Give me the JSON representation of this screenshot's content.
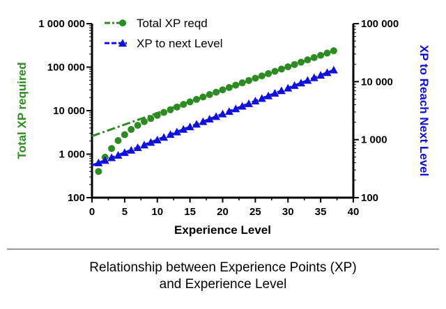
{
  "colors": {
    "total": "#2e8b22",
    "next": "#1010d8",
    "axis": "#000000",
    "divider": "#999999"
  },
  "caption": {
    "line1": "Relationship between Experience Points (XP)",
    "line2": "and Experience Level"
  },
  "chart_data": {
    "type": "scatter",
    "xlabel": "Experience Level",
    "ylabel_left": "Total XP required",
    "ylabel_right": "XP to Reach  Next Level",
    "xlim": [
      0,
      40
    ],
    "ylim_left": [
      100,
      1000000
    ],
    "ylim_right": [
      100,
      100000
    ],
    "log_scale_y": true,
    "grid": false,
    "legend_position": "top-left",
    "x_ticks": [
      "0",
      "5",
      "10",
      "15",
      "20",
      "25",
      "30",
      "35",
      "40"
    ],
    "y_left_ticks": [
      "100",
      "1 000",
      "10 000",
      "100 000",
      "1 000 000"
    ],
    "y_right_ticks": [
      "100",
      "1 000",
      "10 000",
      "100 000"
    ],
    "series": [
      {
        "name": "Total XP reqd",
        "axis": "left",
        "marker": "circle",
        "fit": "dash-dot",
        "x": [
          1,
          2,
          3,
          4,
          5,
          6,
          7,
          8,
          9,
          10,
          11,
          12,
          13,
          14,
          15,
          16,
          17,
          18,
          19,
          20,
          21,
          22,
          23,
          24,
          25,
          26,
          27,
          28,
          29,
          30,
          31,
          32,
          33,
          34,
          35,
          36,
          37
        ],
        "values": [
          400,
          850,
          1350,
          2050,
          2800,
          3700,
          4600,
          5600,
          6600,
          7800,
          9100,
          10500,
          12100,
          13900,
          15900,
          18100,
          20600,
          23400,
          26600,
          30100,
          34100,
          38600,
          43600,
          49300,
          55700,
          62900,
          71000,
          80200,
          90500,
          102000,
          115000,
          130000,
          147000,
          166000,
          187000,
          211000,
          238000
        ]
      },
      {
        "name": "XP to next Level",
        "axis": "right",
        "marker": "triangle",
        "fit": "dash",
        "x": [
          1,
          2,
          3,
          4,
          5,
          6,
          7,
          8,
          9,
          10,
          11,
          12,
          13,
          14,
          15,
          16,
          17,
          18,
          19,
          20,
          21,
          22,
          23,
          24,
          25,
          26,
          27,
          28,
          29,
          30,
          31,
          32,
          33,
          34,
          35,
          36,
          37
        ],
        "values": [
          400,
          440,
          490,
          540,
          600,
          660,
          730,
          810,
          900,
          990,
          1100,
          1230,
          1360,
          1510,
          1670,
          1850,
          2050,
          2270,
          2510,
          2780,
          3080,
          3410,
          3780,
          4190,
          4650,
          5150,
          5710,
          6330,
          7010,
          7770,
          8600,
          9520,
          10550,
          11700,
          12950,
          14350,
          15900
        ]
      }
    ],
    "fit_lines": [
      {
        "series": "Total XP reqd",
        "x": [
          0,
          37
        ],
        "values": [
          2600,
          238000
        ]
      },
      {
        "series": "XP to next Level",
        "x": [
          0,
          37
        ],
        "values": [
          360,
          15900
        ]
      }
    ]
  }
}
